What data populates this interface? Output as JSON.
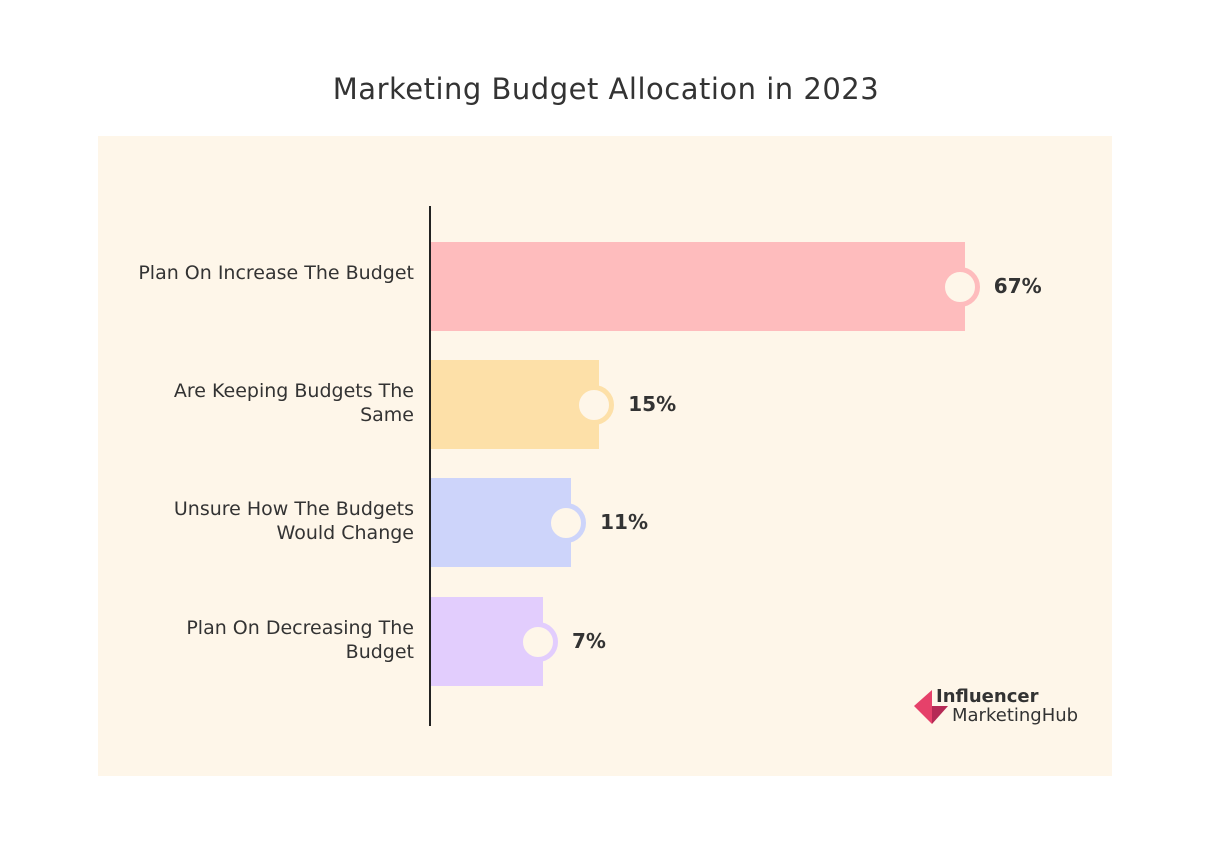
{
  "chart_data": {
    "type": "bar",
    "orientation": "horizontal",
    "title": "Marketing Budget Allocation in 2023",
    "categories": [
      "Plan On Increase The Budget",
      "Are Keeping Budgets The Same",
      "Unsure How The Budgets Would Change",
      "Plan On Decreasing The Budget"
    ],
    "values": [
      67,
      15,
      11,
      7
    ],
    "value_labels": [
      "67%",
      "15%",
      "11%",
      "7%"
    ],
    "colors": [
      "#febcbd",
      "#fde0a8",
      "#cdd4fa",
      "#e2cdfd"
    ],
    "grid": false,
    "legend": "none"
  },
  "background_color": "#fef6e9",
  "logo": {
    "line1": "Influencer",
    "line2": "MarketingHub",
    "color": "#e6416a"
  }
}
